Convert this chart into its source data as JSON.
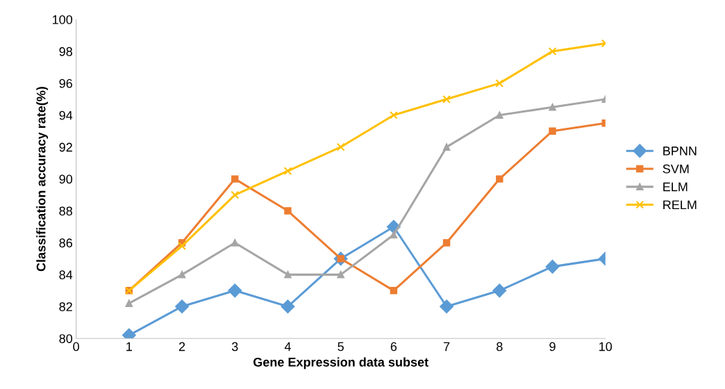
{
  "chart_data": {
    "type": "line",
    "xlabel": "Gene Expression data subset",
    "ylabel": "Classification accuracy rate(%)",
    "x": [
      1,
      2,
      3,
      4,
      5,
      6,
      7,
      8,
      9,
      10
    ],
    "xlim": [
      0,
      10
    ],
    "xticks": [
      0,
      1,
      2,
      3,
      4,
      5,
      6,
      7,
      8,
      9,
      10
    ],
    "ylim": [
      80,
      100
    ],
    "yticks": [
      80,
      82,
      84,
      86,
      88,
      90,
      92,
      94,
      96,
      98,
      100
    ],
    "grid": false,
    "legend": "right",
    "series": [
      {
        "name": "BPNN",
        "color": "#5b9bd5",
        "marker": "diamond",
        "values": [
          80.2,
          82,
          83,
          82,
          85,
          87,
          82,
          83,
          84.5,
          85
        ]
      },
      {
        "name": "SVM",
        "color": "#ed7d31",
        "marker": "square",
        "values": [
          83,
          86,
          90,
          88,
          85,
          83,
          86,
          90,
          93,
          93.5
        ]
      },
      {
        "name": "ELM",
        "color": "#a5a5a5",
        "marker": "triangle",
        "values": [
          82.2,
          84,
          86,
          84,
          84,
          86.5,
          92,
          94,
          94.5,
          95
        ]
      },
      {
        "name": "RELM",
        "color": "#ffc000",
        "marker": "cross",
        "values": [
          83,
          85.8,
          89,
          90.5,
          92,
          94,
          95,
          96,
          98,
          98.5
        ]
      }
    ]
  }
}
